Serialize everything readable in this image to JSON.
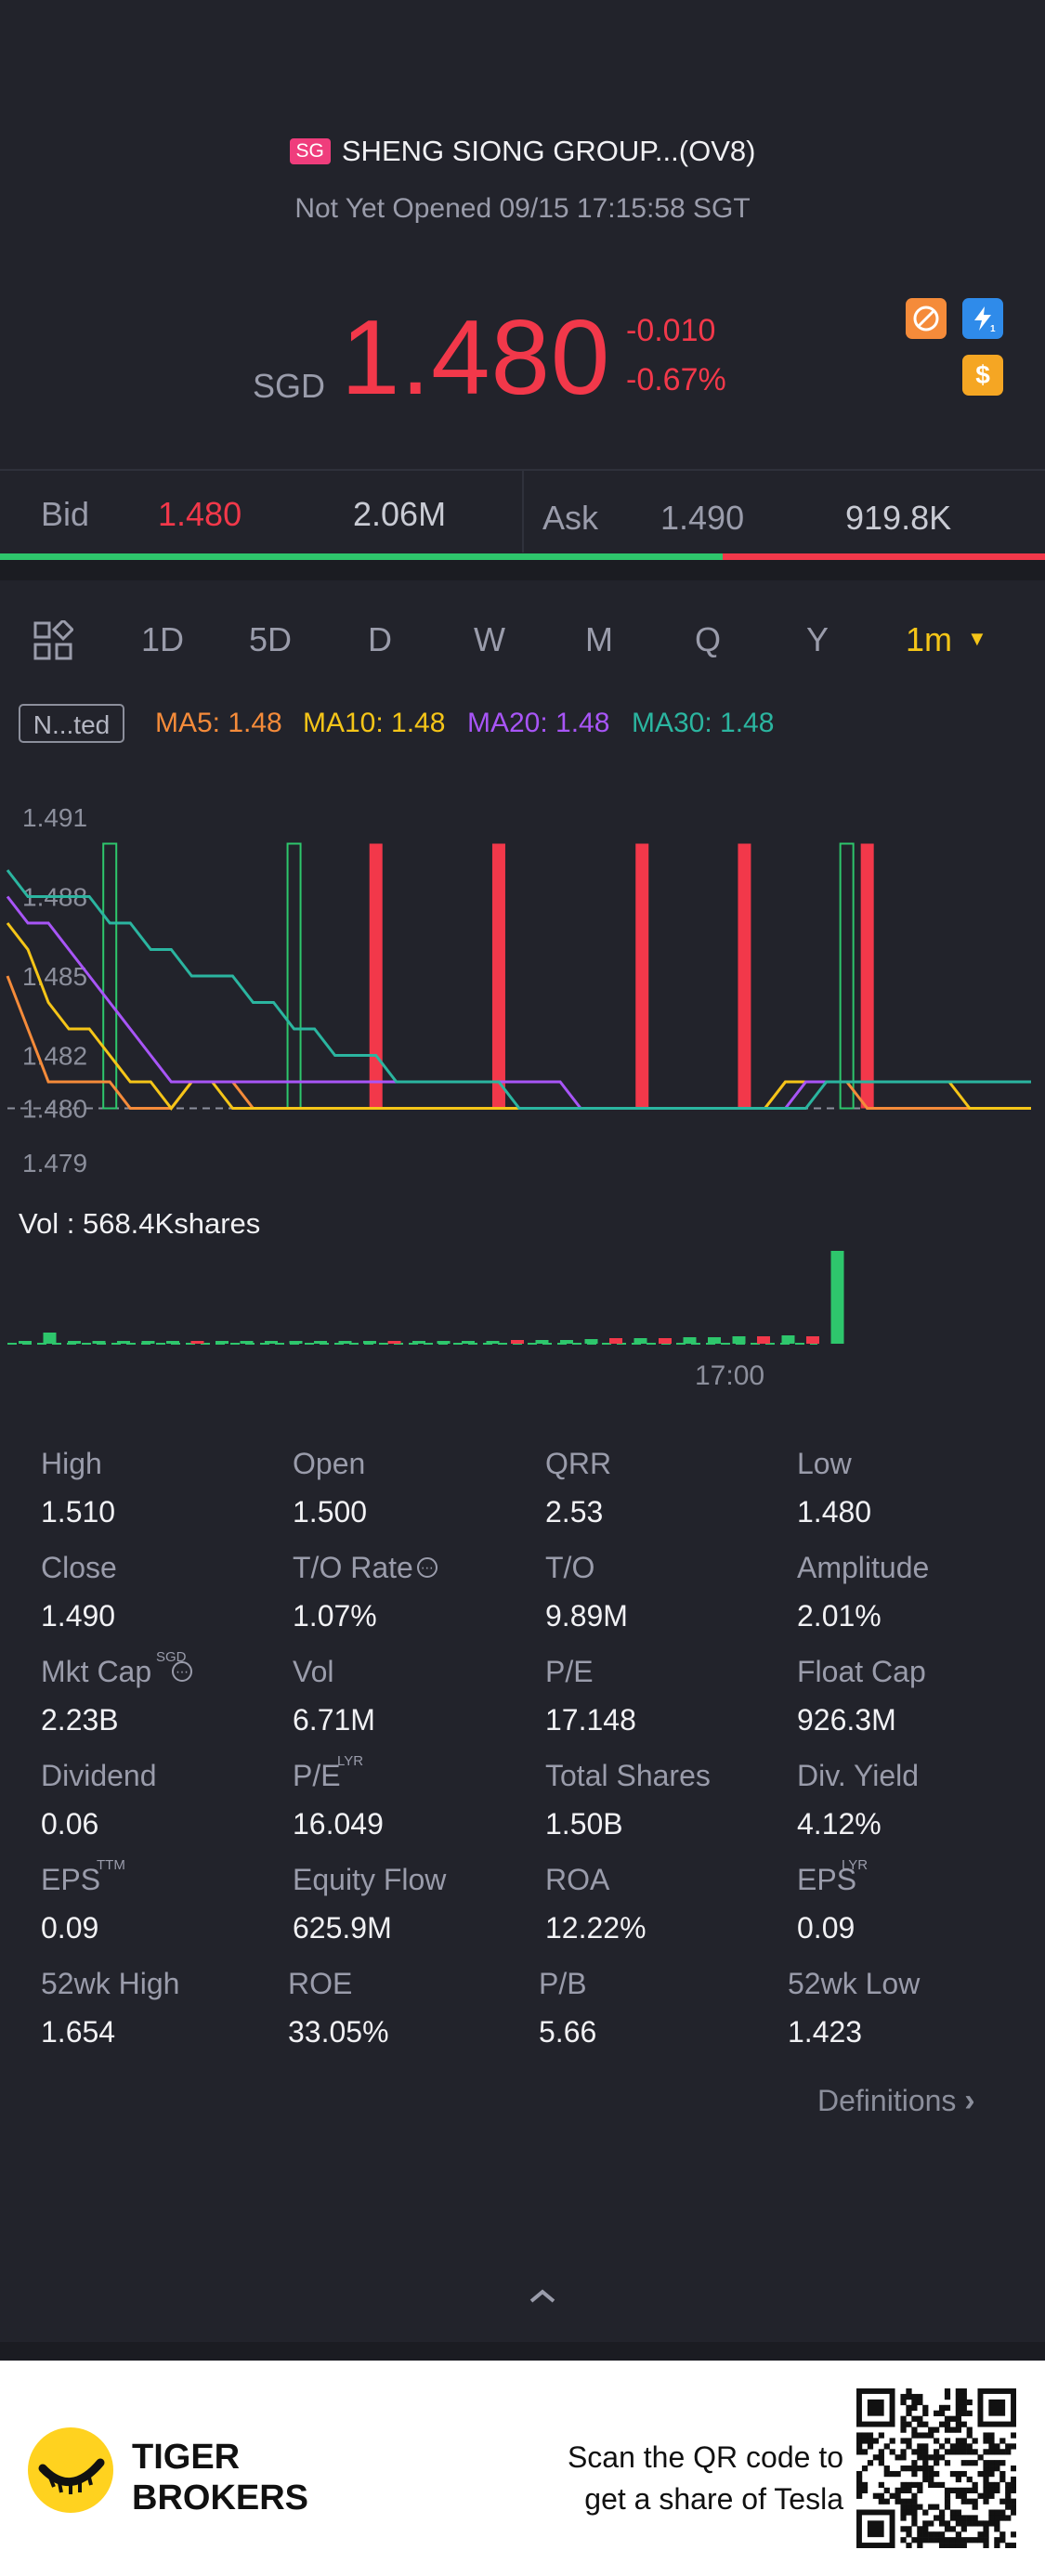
{
  "header": {
    "market_badge": "SG",
    "title": "SHENG SIONG GROUP...(OV8)",
    "status": "Not Yet Opened 09/15 17:15:58 SGT"
  },
  "price": {
    "currency": "SGD",
    "last": "1.480",
    "change": "-0.010",
    "change_pct": "-0.67%",
    "accent_color": "#f2384a"
  },
  "icons": [
    "no-short-icon",
    "lightning-level1-icon",
    "dollar-icon"
  ],
  "quote": {
    "bid_label": "Bid",
    "bid_price": "1.480",
    "bid_size": "2.06M",
    "ask_label": "Ask",
    "ask_price": "1.490",
    "ask_size": "919.8K",
    "bid_share": 0.69
  },
  "tabs": {
    "items": [
      "1D",
      "5D",
      "D",
      "W",
      "M",
      "Q",
      "Y"
    ],
    "active": "1m"
  },
  "indicators": {
    "badge": "N...ted",
    "ma5": "MA5: 1.48",
    "ma10": "MA10: 1.48",
    "ma20": "MA20: 1.48",
    "ma30": "MA30: 1.48",
    "colors": {
      "ma5": "#f58b3a",
      "ma10": "#f5c518",
      "ma20": "#a855f7",
      "ma30": "#2bb5a0"
    }
  },
  "chart_data": {
    "type": "line",
    "y_ticks": [
      "1.491",
      "1.488",
      "1.485",
      "1.482",
      "1.480",
      "1.479"
    ],
    "ylim": [
      1.479,
      1.491
    ],
    "x": [
      0,
      1,
      2,
      3,
      4,
      5,
      6,
      7,
      8,
      9,
      10,
      11,
      12,
      13,
      14,
      15,
      16,
      17,
      18,
      19,
      20,
      21,
      22,
      23,
      24,
      25,
      26,
      27,
      28,
      29,
      30,
      31,
      32,
      33,
      34,
      35,
      36,
      37,
      38,
      39,
      40,
      41,
      42,
      43,
      44,
      45,
      46,
      47,
      48,
      49,
      50
    ],
    "series": [
      {
        "name": "MA5",
        "color": "#f58b3a",
        "values": [
          1.485,
          1.483,
          1.481,
          1.481,
          1.481,
          1.481,
          1.48,
          1.48,
          1.48,
          1.481,
          1.481,
          1.481,
          1.48,
          1.48,
          1.48,
          1.48,
          1.48,
          1.48,
          1.48,
          1.48,
          1.48,
          1.48,
          1.48,
          1.48,
          1.48,
          1.48,
          1.48,
          1.48,
          1.48,
          1.48,
          1.48,
          1.48,
          1.48,
          1.48,
          1.48,
          1.48,
          1.48,
          1.48,
          1.481,
          1.481,
          1.481,
          1.481,
          1.48,
          1.48,
          1.48,
          1.48,
          1.48,
          1.48,
          1.48,
          1.48,
          1.48
        ]
      },
      {
        "name": "MA10",
        "color": "#f5c518",
        "values": [
          1.487,
          1.486,
          1.484,
          1.483,
          1.483,
          1.482,
          1.481,
          1.481,
          1.48,
          1.481,
          1.481,
          1.48,
          1.48,
          1.48,
          1.48,
          1.48,
          1.48,
          1.48,
          1.48,
          1.48,
          1.48,
          1.48,
          1.48,
          1.48,
          1.48,
          1.48,
          1.48,
          1.48,
          1.48,
          1.48,
          1.48,
          1.48,
          1.48,
          1.48,
          1.48,
          1.48,
          1.48,
          1.48,
          1.481,
          1.481,
          1.481,
          1.481,
          1.481,
          1.481,
          1.481,
          1.481,
          1.481,
          1.48,
          1.48,
          1.48,
          1.48
        ]
      },
      {
        "name": "MA20",
        "color": "#a855f7",
        "values": [
          1.488,
          1.487,
          1.487,
          1.486,
          1.485,
          1.484,
          1.483,
          1.482,
          1.481,
          1.481,
          1.481,
          1.481,
          1.481,
          1.481,
          1.481,
          1.481,
          1.481,
          1.481,
          1.481,
          1.481,
          1.481,
          1.481,
          1.481,
          1.481,
          1.481,
          1.481,
          1.481,
          1.481,
          1.48,
          1.48,
          1.48,
          1.48,
          1.48,
          1.48,
          1.48,
          1.48,
          1.48,
          1.48,
          1.48,
          1.481,
          1.481,
          1.481,
          1.481,
          1.481,
          1.481,
          1.481,
          1.481,
          1.481,
          1.481,
          1.481,
          1.481
        ]
      },
      {
        "name": "MA30",
        "color": "#2bb5a0",
        "values": [
          1.489,
          1.488,
          1.488,
          1.488,
          1.488,
          1.487,
          1.487,
          1.486,
          1.486,
          1.485,
          1.485,
          1.485,
          1.484,
          1.484,
          1.483,
          1.483,
          1.482,
          1.482,
          1.482,
          1.481,
          1.481,
          1.481,
          1.481,
          1.481,
          1.481,
          1.48,
          1.48,
          1.48,
          1.48,
          1.48,
          1.48,
          1.48,
          1.48,
          1.48,
          1.48,
          1.48,
          1.48,
          1.48,
          1.48,
          1.48,
          1.481,
          1.481,
          1.481,
          1.481,
          1.481,
          1.481,
          1.481,
          1.481,
          1.481,
          1.481,
          1.481
        ]
      }
    ],
    "candles": [
      {
        "x": 5,
        "open": 1.48,
        "close": 1.49,
        "dir": "up"
      },
      {
        "x": 14,
        "open": 1.48,
        "close": 1.49,
        "dir": "up"
      },
      {
        "x": 18,
        "open": 1.49,
        "close": 1.48,
        "dir": "down"
      },
      {
        "x": 24,
        "open": 1.49,
        "close": 1.48,
        "dir": "down"
      },
      {
        "x": 31,
        "open": 1.49,
        "close": 1.48,
        "dir": "down"
      },
      {
        "x": 36,
        "open": 1.49,
        "close": 1.48,
        "dir": "down"
      },
      {
        "x": 41,
        "open": 1.48,
        "close": 1.49,
        "dir": "up"
      },
      {
        "x": 42,
        "open": 1.49,
        "close": 1.48,
        "dir": "down"
      }
    ],
    "ref_price": 1.48,
    "grid": false
  },
  "volume": {
    "label": "Vol",
    "value": ": 568.4Kshares",
    "time_tick": "17:00",
    "bars": [
      0.02,
      0.12,
      0.02,
      0.02,
      0.02,
      0.02,
      0.02,
      0.02,
      0.02,
      0.02,
      0.02,
      0.02,
      0.02,
      0.03,
      0.03,
      0.03,
      0.03,
      0.03,
      0.03,
      0.03,
      0.04,
      0.04,
      0.04,
      0.05,
      0.06,
      0.06,
      0.06,
      0.07,
      0.07,
      0.08,
      0.08,
      0.09,
      0.08,
      1.0
    ],
    "bar_colors": [
      "g",
      "g",
      "g",
      "g",
      "g",
      "g",
      "g",
      "r",
      "g",
      "g",
      "g",
      "g",
      "g",
      "g",
      "g",
      "r",
      "g",
      "g",
      "g",
      "g",
      "r",
      "g",
      "g",
      "g",
      "r",
      "g",
      "r",
      "g",
      "g",
      "g",
      "r",
      "g",
      "r",
      "g"
    ]
  },
  "stats": [
    {
      "label": "High",
      "value": "1.510"
    },
    {
      "label": "Open",
      "value": "1.500"
    },
    {
      "label": "QRR",
      "value": "2.53"
    },
    {
      "label": "Low",
      "value": "1.480"
    },
    {
      "label": "Close",
      "value": "1.490"
    },
    {
      "label": "T/O Rate",
      "value": "1.07%"
    },
    {
      "label": "T/O",
      "value": "9.89M"
    },
    {
      "label": "Amplitude",
      "value": "2.01%"
    },
    {
      "label": "Mkt Cap",
      "value": "2.23B",
      "sup": "SGD"
    },
    {
      "label": "Vol",
      "value": "6.71M"
    },
    {
      "label": "P/E",
      "value": "17.148"
    },
    {
      "label": "Float Cap",
      "value": "926.3M"
    },
    {
      "label": "Dividend",
      "value": "0.06"
    },
    {
      "label": "P/E",
      "value": "16.049",
      "sup": "LYR"
    },
    {
      "label": "Total Shares",
      "value": "1.50B"
    },
    {
      "label": "Div. Yield",
      "value": "4.12%"
    },
    {
      "label": "EPS",
      "value": "0.09",
      "sup": "TTM"
    },
    {
      "label": "Equity Flow",
      "value": "625.9M"
    },
    {
      "label": "ROA",
      "value": "12.22%"
    },
    {
      "label": "EPS",
      "value": "0.09",
      "sup": "LYR"
    },
    {
      "label": "52wk High",
      "value": "1.654"
    },
    {
      "label": "ROE",
      "value": "33.05%"
    },
    {
      "label": "P/B",
      "value": "5.66"
    },
    {
      "label": "52wk Low",
      "value": "1.423"
    }
  ],
  "definitions_link": "Definitions",
  "footer": {
    "brand_line1": "TIGER",
    "brand_line2": "BROKERS",
    "promo_line1": "Scan the QR code to",
    "promo_line2": "get a share of Tesla"
  }
}
